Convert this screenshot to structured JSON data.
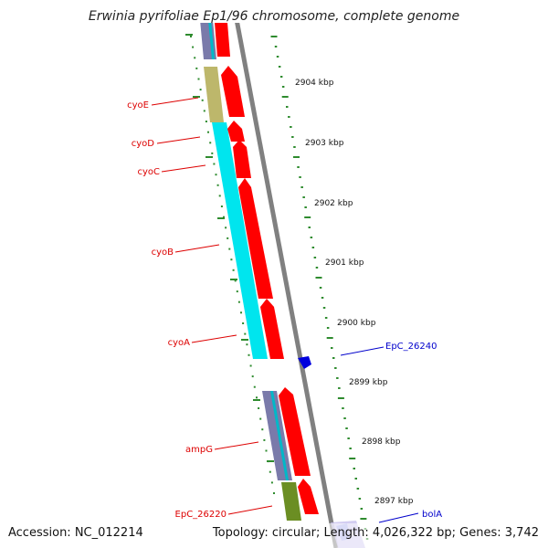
{
  "title": "Erwinia pyrifoliae Ep1/96 chromosome, complete genome",
  "footer": {
    "accession": "Accession: NC_012214",
    "summary": "Topology: circular; Length: 4,026,322 bp; Genes: 3,742"
  },
  "colors": {
    "backbone": "#8a8a8a",
    "ruler": "#2e8b2e",
    "forward_gene": "#ff0000",
    "reverse_gene": "#0000dd",
    "cds_cyan": "#00e5ee",
    "cds_olive": "#bdb76b",
    "cds_green": "#6b8e23",
    "cds_lavender": "#c0b8e8",
    "label_red": "#dd0000",
    "label_blue": "#0000cc"
  },
  "ruler_labels": [
    "2904 kbp",
    "2903 kbp",
    "2902 kbp",
    "2901 kbp",
    "2900 kbp",
    "2899 kbp",
    "2898 kbp",
    "2897 kbp"
  ],
  "gene_labels": [
    {
      "name": "cyoE",
      "strand": "forward"
    },
    {
      "name": "cyoD",
      "strand": "forward"
    },
    {
      "name": "cyoC",
      "strand": "forward"
    },
    {
      "name": "cyoB",
      "strand": "forward"
    },
    {
      "name": "cyoA",
      "strand": "forward"
    },
    {
      "name": "ampG",
      "strand": "forward"
    },
    {
      "name": "EpC_26220",
      "strand": "forward"
    },
    {
      "name": "EpC_26240",
      "strand": "reverse"
    },
    {
      "name": "bolA",
      "strand": "reverse"
    }
  ]
}
